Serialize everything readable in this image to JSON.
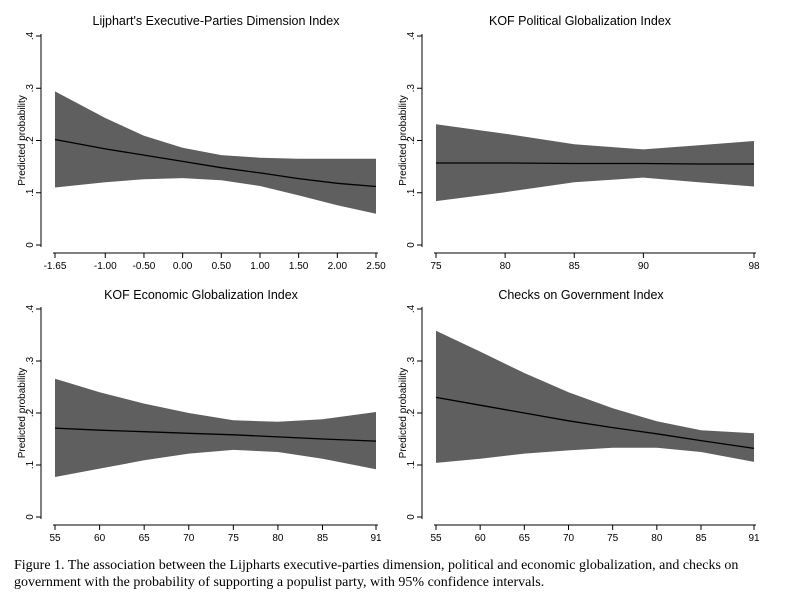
{
  "caption": "Figure 1. The association between the Lijpharts executive-parties dimension, political and economic globalization, and checks on government with the probability of supporting a populist party, with 95% confidence intervals.",
  "colors": {
    "band": "#5f5f5f",
    "line": "#000000",
    "axis": "#000000",
    "background": "#ffffff"
  },
  "chart_data": [
    {
      "type": "line",
      "title": "Lijphart's Executive-Parties Dimension Index",
      "ylabel": "Predicted probability",
      "xlim": [
        -1.65,
        2.5
      ],
      "ylim": [
        0,
        0.4
      ],
      "xticks": [
        -1.65,
        -1.0,
        -0.5,
        0.0,
        0.5,
        1.0,
        1.5,
        2.0,
        2.5
      ],
      "xtick_labels": [
        "-1.65",
        "-1.00",
        "-0.50",
        "0.00",
        "0.50",
        "1.00",
        "1.50",
        "2.00",
        "2.50"
      ],
      "yticks": [
        0,
        0.1,
        0.2,
        0.3,
        0.4
      ],
      "ytick_labels": [
        "0",
        ".1",
        ".2",
        ".3",
        ".4"
      ],
      "x": [
        -1.65,
        -1.0,
        -0.5,
        0.0,
        0.5,
        1.0,
        1.5,
        2.0,
        2.5
      ],
      "y": [
        0.202,
        0.184,
        0.172,
        0.16,
        0.148,
        0.138,
        0.127,
        0.118,
        0.112
      ],
      "ci_upper": [
        0.294,
        0.243,
        0.209,
        0.186,
        0.172,
        0.167,
        0.165,
        0.165,
        0.165
      ],
      "ci_lower": [
        0.11,
        0.12,
        0.126,
        0.128,
        0.124,
        0.113,
        0.095,
        0.076,
        0.06
      ]
    },
    {
      "type": "line",
      "title": "KOF Political Globalization Index",
      "ylabel": "Predicted probability",
      "xlim": [
        75,
        98
      ],
      "ylim": [
        0,
        0.4
      ],
      "xticks": [
        75,
        80,
        85,
        90,
        98
      ],
      "xtick_labels": [
        "75",
        "80",
        "85",
        "90",
        "98"
      ],
      "yticks": [
        0,
        0.1,
        0.2,
        0.3,
        0.4
      ],
      "ytick_labels": [
        "0",
        ".1",
        ".2",
        ".3",
        ".4"
      ],
      "x": [
        75,
        80,
        85,
        90,
        94,
        98
      ],
      "y": [
        0.157,
        0.157,
        0.156,
        0.156,
        0.155,
        0.155
      ],
      "ci_upper": [
        0.231,
        0.213,
        0.193,
        0.183,
        0.191,
        0.199
      ],
      "ci_lower": [
        0.084,
        0.101,
        0.12,
        0.129,
        0.12,
        0.112
      ]
    },
    {
      "type": "line",
      "title": "KOF Economic Globalization Index",
      "ylabel": "Predicted probability",
      "xlim": [
        55,
        91
      ],
      "ylim": [
        0,
        0.4
      ],
      "xticks": [
        55,
        60,
        65,
        70,
        75,
        80,
        85,
        91
      ],
      "xtick_labels": [
        "55",
        "60",
        "65",
        "70",
        "75",
        "80",
        "85",
        "91"
      ],
      "yticks": [
        0,
        0.1,
        0.2,
        0.3,
        0.4
      ],
      "ytick_labels": [
        "0",
        ".1",
        ".2",
        ".3",
        ".4"
      ],
      "x": [
        55,
        60,
        65,
        70,
        75,
        80,
        85,
        91
      ],
      "y": [
        0.171,
        0.167,
        0.164,
        0.161,
        0.158,
        0.154,
        0.15,
        0.146
      ],
      "ci_upper": [
        0.266,
        0.24,
        0.218,
        0.2,
        0.186,
        0.183,
        0.188,
        0.202
      ],
      "ci_lower": [
        0.077,
        0.093,
        0.109,
        0.122,
        0.129,
        0.125,
        0.112,
        0.092
      ]
    },
    {
      "type": "line",
      "title": "Checks on Government Index",
      "ylabel": "Predicted probability",
      "xlim": [
        55,
        91
      ],
      "ylim": [
        0,
        0.4
      ],
      "xticks": [
        55,
        60,
        65,
        70,
        75,
        80,
        85,
        91
      ],
      "xtick_labels": [
        "55",
        "60",
        "65",
        "70",
        "75",
        "80",
        "85",
        "91"
      ],
      "yticks": [
        0,
        0.1,
        0.2,
        0.3,
        0.4
      ],
      "ytick_labels": [
        "0",
        ".1",
        ".2",
        ".3",
        ".4"
      ],
      "x": [
        55,
        60,
        65,
        70,
        75,
        80,
        85,
        91
      ],
      "y": [
        0.23,
        0.215,
        0.2,
        0.185,
        0.172,
        0.16,
        0.147,
        0.132
      ],
      "ci_upper": [
        0.358,
        0.318,
        0.277,
        0.24,
        0.209,
        0.184,
        0.167,
        0.161
      ],
      "ci_lower": [
        0.104,
        0.112,
        0.122,
        0.128,
        0.133,
        0.133,
        0.125,
        0.106
      ]
    }
  ]
}
